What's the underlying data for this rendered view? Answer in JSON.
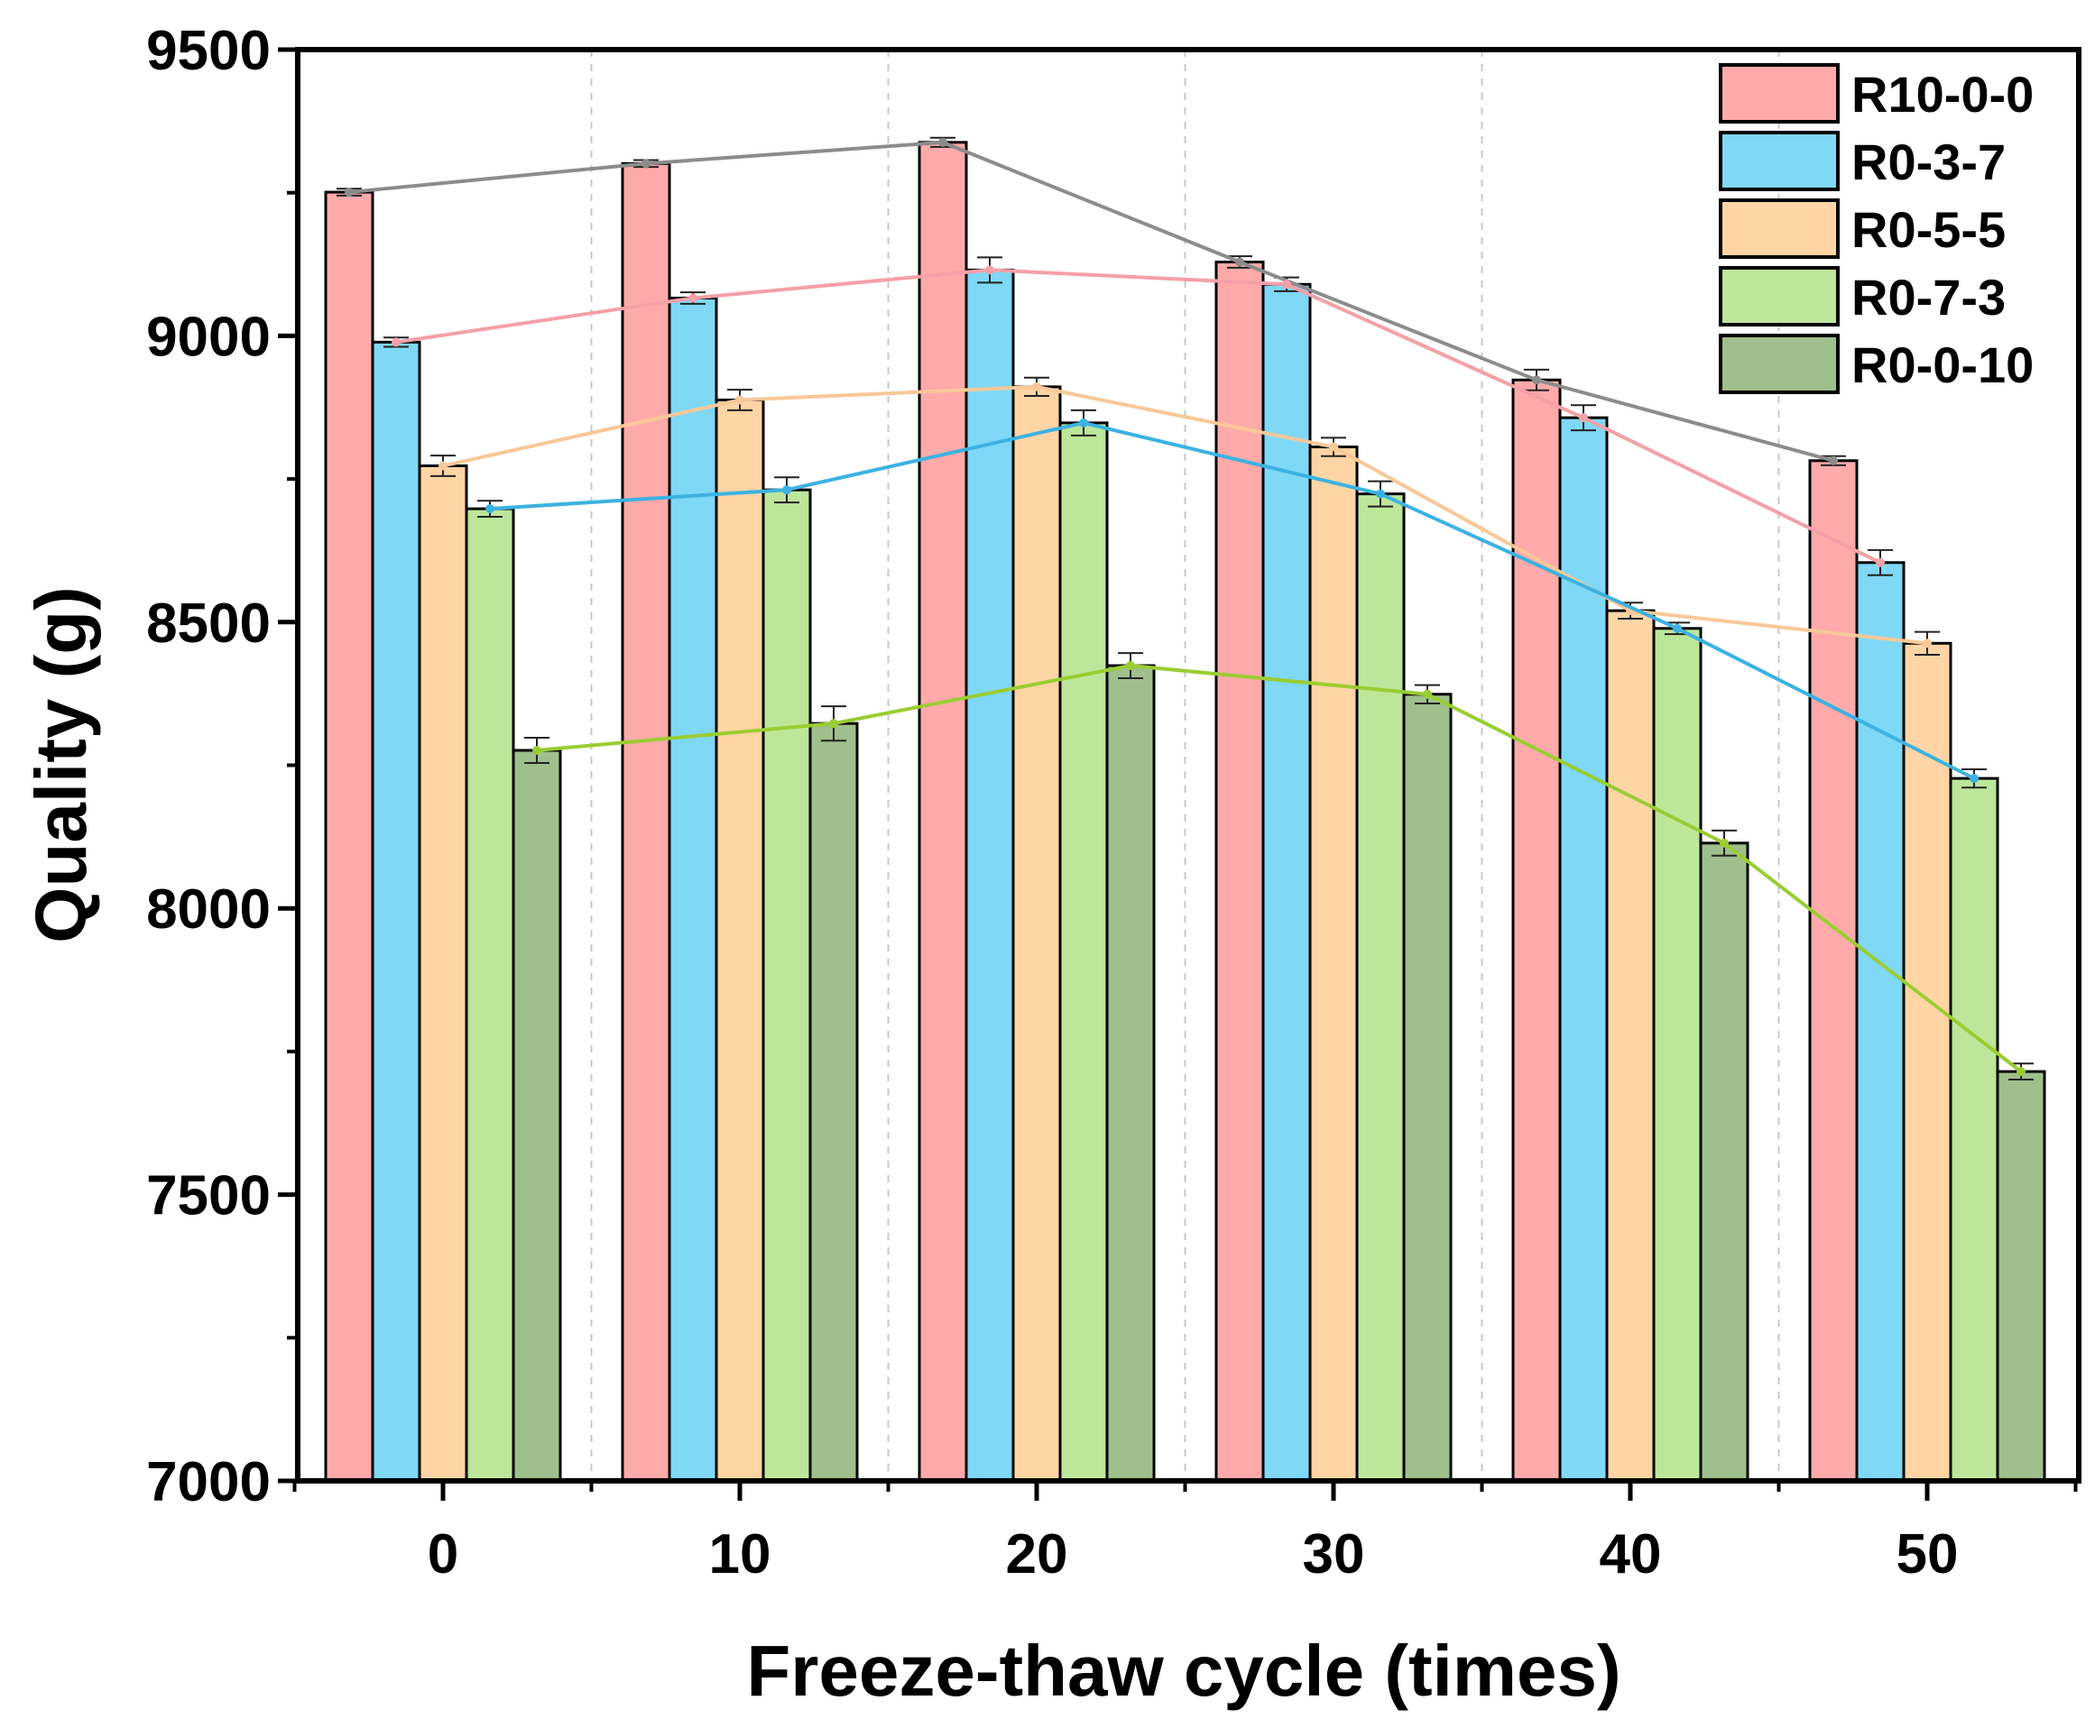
{
  "chart_data": {
    "type": "bar",
    "title": "",
    "xlabel": "Freeze-thaw cycle (times)",
    "ylabel": "Quality (g)",
    "categories": [
      "0",
      "10",
      "20",
      "30",
      "40",
      "50"
    ],
    "ylim": [
      7000,
      9500
    ],
    "yticks": [
      "7000",
      "7500",
      "8000",
      "8500",
      "9000",
      "9500"
    ],
    "legend_position": "top-right",
    "grid": "vertical dashed between groups",
    "series": [
      {
        "name": "R10-0-0",
        "color": "#ffaaaa",
        "line_color": "#8c8c8c",
        "values": [
          9251,
          9301,
          9338,
          9129,
          8923,
          8782
        ],
        "errors": [
          6,
          6,
          8,
          10,
          18,
          8
        ]
      },
      {
        "name": "R0-3-7",
        "color": "#7fd8f5",
        "line_color": "#f4a0a8",
        "values": [
          8989,
          9066,
          9115,
          9090,
          8857,
          8604
        ],
        "errors": [
          8,
          10,
          22,
          12,
          22,
          22
        ]
      },
      {
        "name": "R0-5-5",
        "color": "#ffd5a5",
        "line_color": "#f8c898",
        "values": [
          8773,
          8888,
          8911,
          8806,
          8520,
          8463
        ],
        "errors": [
          18,
          18,
          16,
          16,
          14,
          20
        ]
      },
      {
        "name": "R0-7-3",
        "color": "#bde69a",
        "line_color": "#3cb2e2",
        "values": [
          8698,
          8731,
          8848,
          8724,
          8489,
          8227
        ],
        "errors": [
          14,
          22,
          22,
          22,
          10,
          16
        ]
      },
      {
        "name": "R0-0-10",
        "color": "#9fbf8c",
        "line_color": "#9acd32",
        "values": [
          8276,
          8323,
          8424,
          8374,
          8114,
          7715
        ],
        "errors": [
          22,
          30,
          22,
          16,
          22,
          14
        ]
      }
    ]
  }
}
